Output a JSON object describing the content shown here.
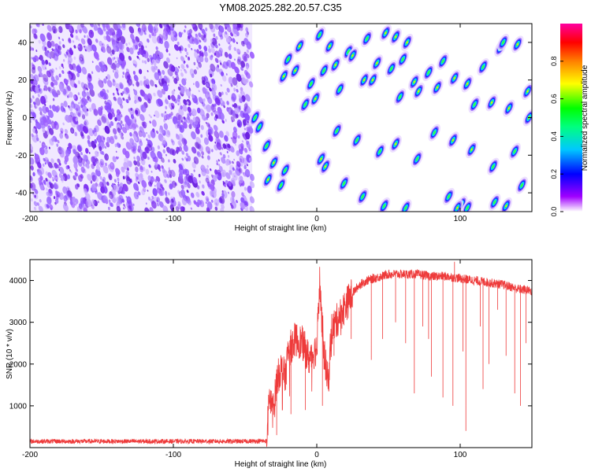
{
  "chart_data": [
    {
      "type": "heatmap",
      "title": "YM08.2025.282.20.57.C35",
      "xlabel": "Height of straight line (km)",
      "ylabel": "Frequency (Hz)",
      "xlim": [
        -200,
        150
      ],
      "ylim": [
        -50,
        50
      ],
      "xticks": [
        "-200",
        "-100",
        "0",
        "100"
      ],
      "yticks": [
        "40",
        "20",
        "0",
        "-20",
        "-40"
      ],
      "noise_region_x": [
        -200,
        -45
      ],
      "colorbar": {
        "label": "Normalized spectral amplitude",
        "range": [
          0,
          1
        ],
        "ticks": [
          "0.0",
          "0.2",
          "0.4",
          "0.6",
          "0.8"
        ],
        "colors": [
          "#ffffff",
          "#a000ff",
          "#0000ff",
          "#00c8ff",
          "#00ff00",
          "#ffff00",
          "#ff0000",
          "#ff00a0"
        ]
      },
      "spectral_streaks": [
        [
          2,
          44
        ],
        [
          9,
          38
        ],
        [
          22,
          35
        ],
        [
          35,
          42
        ],
        [
          48,
          45
        ],
        [
          55,
          43
        ],
        [
          63,
          40
        ],
        [
          -20,
          31
        ],
        [
          -12,
          38
        ],
        [
          -4,
          18
        ],
        [
          5,
          25
        ],
        [
          13,
          28
        ],
        [
          25,
          33
        ],
        [
          33,
          20
        ],
        [
          42,
          29
        ],
        [
          52,
          26
        ],
        [
          60,
          31
        ],
        [
          68,
          19
        ],
        [
          78,
          24
        ],
        [
          88,
          30
        ],
        [
          96,
          21
        ],
        [
          105,
          18
        ],
        [
          116,
          27
        ],
        [
          128,
          37
        ],
        [
          140,
          39
        ],
        [
          -23,
          22
        ],
        [
          -8,
          7
        ],
        [
          -1,
          10
        ],
        [
          16,
          15
        ],
        [
          39,
          20
        ],
        [
          58,
          11
        ],
        [
          71,
          14
        ],
        [
          84,
          16
        ],
        [
          110,
          7
        ],
        [
          122,
          8
        ],
        [
          134,
          5
        ],
        [
          147,
          14
        ],
        [
          -43,
          0
        ],
        [
          -35,
          -15
        ],
        [
          -30,
          -24
        ],
        [
          -22,
          -28
        ],
        [
          3,
          -22
        ],
        [
          14,
          -7
        ],
        [
          28,
          -12
        ],
        [
          44,
          -18
        ],
        [
          55,
          -14
        ],
        [
          70,
          -22
        ],
        [
          82,
          -8
        ],
        [
          95,
          -12
        ],
        [
          108,
          -17
        ],
        [
          123,
          -26
        ],
        [
          138,
          -18
        ],
        [
          -34,
          -33
        ],
        [
          -25,
          -36
        ],
        [
          6,
          -26
        ],
        [
          19,
          -35
        ],
        [
          32,
          -42
        ],
        [
          47,
          -47
        ],
        [
          62,
          -48
        ],
        [
          92,
          -42
        ],
        [
          101,
          -46
        ],
        [
          105,
          -48
        ],
        [
          124,
          -45
        ],
        [
          132,
          -47
        ],
        [
          143,
          -36
        ],
        [
          98,
          -48
        ],
        [
          -40,
          -5
        ],
        [
          -15,
          25
        ],
        [
          148,
          0
        ],
        [
          130,
          40
        ]
      ]
    },
    {
      "type": "line",
      "xlabel": "Height of straight line (km)",
      "ylabel": "SNR (10 * v/v)",
      "xlim": [
        -200,
        150
      ],
      "ylim": [
        0,
        4500
      ],
      "xticks": [
        "-200",
        "-100",
        "0",
        "100"
      ],
      "yticks": [
        "1000",
        "2000",
        "3000",
        "4000"
      ],
      "line_color": "#ee3b3b",
      "series": [
        {
          "name": "SNR",
          "x": [
            -200,
            -150,
            -100,
            -50,
            -35,
            -33,
            -30,
            -28,
            -25,
            -22,
            -20,
            -15,
            -10,
            -5,
            0,
            2,
            5,
            8,
            10,
            15,
            20,
            25,
            30,
            35,
            40,
            45,
            50,
            60,
            70,
            80,
            90,
            100,
            110,
            120,
            130,
            140,
            150
          ],
          "values": [
            150,
            150,
            150,
            150,
            160,
            1200,
            900,
            1600,
            1900,
            1700,
            2300,
            2600,
            2500,
            2100,
            2400,
            4000,
            2300,
            1500,
            2800,
            3100,
            3400,
            3700,
            3900,
            4000,
            4050,
            4100,
            4150,
            4150,
            4150,
            4100,
            4100,
            4050,
            4000,
            3950,
            3900,
            3800,
            3750
          ]
        }
      ],
      "annotations": {
        "spikes_down": [
          [
            -28,
            300
          ],
          [
            -18,
            800
          ],
          [
            -8,
            900
          ],
          [
            4,
            1000
          ],
          [
            12,
            2200
          ],
          [
            24,
            2600
          ],
          [
            38,
            2100
          ],
          [
            46,
            2600
          ],
          [
            55,
            3000
          ],
          [
            62,
            2500
          ],
          [
            68,
            1300
          ],
          [
            74,
            2900
          ],
          [
            78,
            2600
          ],
          [
            80,
            1700
          ],
          [
            88,
            1200
          ],
          [
            95,
            1000
          ],
          [
            102,
            2300
          ],
          [
            104,
            400
          ],
          [
            114,
            2900
          ],
          [
            116,
            1400
          ],
          [
            120,
            2000
          ],
          [
            126,
            3300
          ],
          [
            132,
            2200
          ],
          [
            138,
            1300
          ],
          [
            142,
            1000
          ],
          [
            146,
            2500
          ]
        ],
        "spikes_up": [
          [
            2,
            4300
          ],
          [
            96,
            4450
          ],
          [
            -33,
            1400
          ]
        ]
      }
    }
  ]
}
